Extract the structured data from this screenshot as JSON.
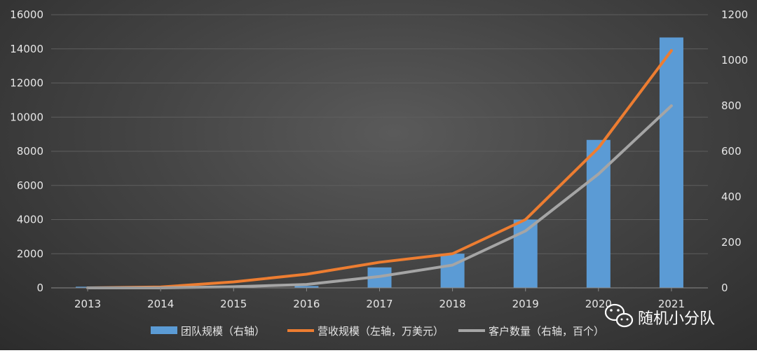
{
  "chart_data": {
    "type": "bar",
    "categories": [
      "2013",
      "2014",
      "2015",
      "2016",
      "2017",
      "2018",
      "2019",
      "2020",
      "2021"
    ],
    "left_axis": {
      "range": [
        0,
        16000
      ],
      "ticks": [
        "0",
        "2000",
        "4000",
        "6000",
        "8000",
        "10000",
        "12000",
        "14000",
        "16000"
      ]
    },
    "right_axis": {
      "range": [
        0,
        1200
      ],
      "ticks": [
        "0",
        "200",
        "400",
        "600",
        "800",
        "1000",
        "1200"
      ]
    },
    "grid": true,
    "legend_position": "bottom",
    "series": [
      {
        "name": "团队规模（右轴）",
        "type": "bar",
        "axis": "right",
        "color": "#5b9bd5",
        "values": [
          5,
          5,
          5,
          8,
          90,
          150,
          300,
          650,
          1100
        ]
      },
      {
        "name": "营收规模（左轴，万美元）",
        "type": "line",
        "axis": "left",
        "color": "#ed7d31",
        "values": [
          0,
          50,
          350,
          800,
          1500,
          2000,
          4000,
          8200,
          13900
        ]
      },
      {
        "name": "客户数量（右轴，百个）",
        "type": "line",
        "axis": "right",
        "color": "#a5a5a5",
        "values": [
          0,
          0,
          5,
          15,
          50,
          100,
          250,
          500,
          800
        ]
      }
    ]
  },
  "watermark": {
    "text": "随机小分队",
    "icon": "wechat-icon"
  }
}
